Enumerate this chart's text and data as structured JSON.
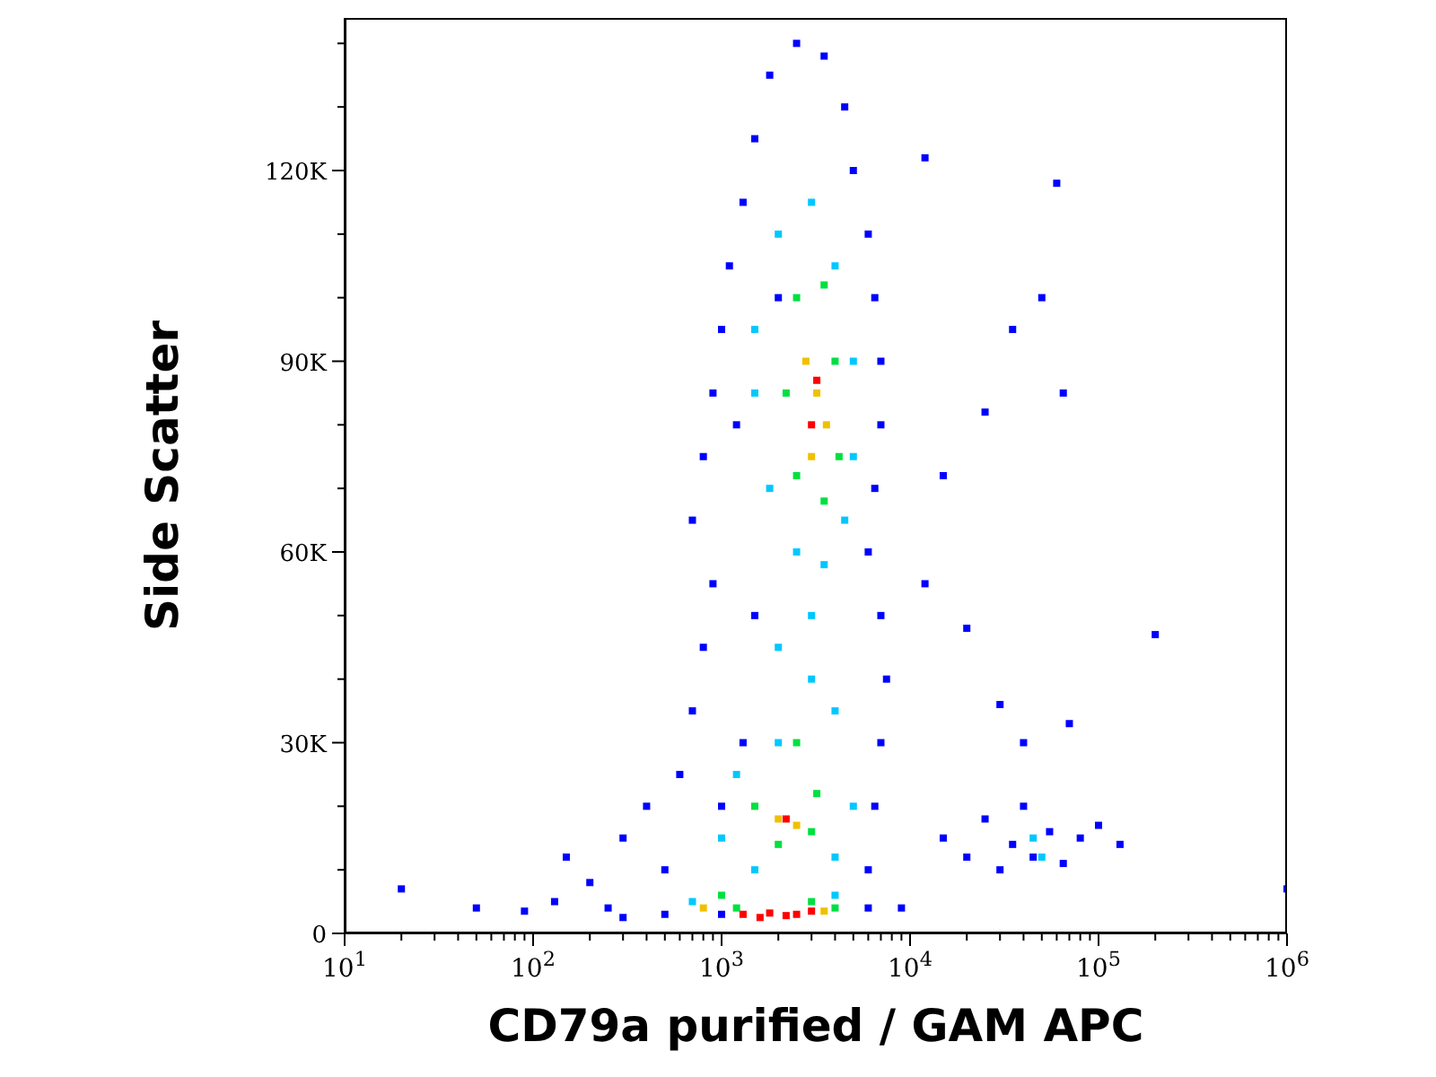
{
  "chart_data": {
    "type": "scatter",
    "xlabel": "CD79a purified / GAM APC",
    "ylabel": "Side Scatter",
    "log": "x",
    "marker": "square",
    "xlim": [
      10,
      1000000
    ],
    "ylim": [
      0,
      144000
    ],
    "xticks": [
      {
        "value": 10,
        "label": "10$^{1}$"
      },
      {
        "value": 20,
        "label": null
      },
      {
        "value": 30,
        "label": null
      },
      {
        "value": 40,
        "label": null
      },
      {
        "value": 50,
        "label": null
      },
      {
        "value": 60,
        "label": null
      },
      {
        "value": 70,
        "label": null
      },
      {
        "value": 80,
        "label": null
      },
      {
        "value": 90,
        "label": null
      },
      {
        "value": 100,
        "label": "10$^{2}$"
      },
      {
        "value": 200,
        "label": null
      },
      {
        "value": 300,
        "label": null
      },
      {
        "value": 400,
        "label": null
      },
      {
        "value": 500,
        "label": null
      },
      {
        "value": 600,
        "label": null
      },
      {
        "value": 700,
        "label": null
      },
      {
        "value": 800,
        "label": null
      },
      {
        "value": 900,
        "label": null
      },
      {
        "value": 1000,
        "label": "10$^{3}$"
      },
      {
        "value": 2000,
        "label": null
      },
      {
        "value": 3000,
        "label": null
      },
      {
        "value": 4000,
        "label": null
      },
      {
        "value": 5000,
        "label": null
      },
      {
        "value": 6000,
        "label": null
      },
      {
        "value": 7000,
        "label": null
      },
      {
        "value": 8000,
        "label": null
      },
      {
        "value": 9000,
        "label": null
      },
      {
        "value": 10000,
        "label": "10$^{4}$"
      },
      {
        "value": 20000,
        "label": null
      },
      {
        "value": 30000,
        "label": null
      },
      {
        "value": 40000,
        "label": null
      },
      {
        "value": 50000,
        "label": null
      },
      {
        "value": 60000,
        "label": null
      },
      {
        "value": 70000,
        "label": null
      },
      {
        "value": 80000,
        "label": null
      },
      {
        "value": 90000,
        "label": null
      },
      {
        "value": 100000,
        "label": "10$^{5}$"
      },
      {
        "value": 200000,
        "label": null
      },
      {
        "value": 300000,
        "label": null
      },
      {
        "value": 400000,
        "label": null
      },
      {
        "value": 500000,
        "label": null
      },
      {
        "value": 600000,
        "label": null
      },
      {
        "value": 700000,
        "label": null
      },
      {
        "value": 800000,
        "label": null
      },
      {
        "value": 900000,
        "label": null
      },
      {
        "value": 1000000,
        "label": "10$^{6}$"
      }
    ],
    "yticks": [
      0,
      {
        "value": 10000,
        "label": null
      },
      {
        "value": 20000,
        "label": null
      },
      {
        "value": 30000,
        "label": "30K"
      },
      {
        "value": 40000,
        "label": null
      },
      {
        "value": 50000,
        "label": null
      },
      {
        "value": 60000,
        "label": "60K"
      },
      {
        "value": 70000,
        "label": null
      },
      {
        "value": 80000,
        "label": null
      },
      {
        "value": 90000,
        "label": "90K"
      },
      {
        "value": 100000,
        "label": null
      },
      {
        "value": 110000,
        "label": null
      },
      {
        "value": 120000,
        "label": "120K"
      },
      {
        "value": 130000,
        "label": null
      },
      {
        "value": 140000,
        "label": null
      }
    ],
    "series": [
      {
        "color": "#0000ff",
        "x": [
          20,
          50,
          90,
          130,
          150,
          200,
          250,
          300,
          400,
          500,
          600,
          700,
          800,
          900,
          700,
          800,
          900,
          1000,
          1100,
          1300,
          1500,
          1800,
          2500,
          3500,
          4500,
          5000,
          6000,
          6500,
          7000,
          7000,
          6500,
          6000,
          7000,
          7500,
          7000,
          6500,
          6000,
          6000,
          9000,
          1000,
          500,
          15000,
          20000,
          25000,
          30000,
          35000,
          40000,
          45000,
          55000,
          65000,
          80000,
          100000,
          130000,
          40000,
          70000,
          30000,
          20000,
          12000,
          15000,
          25000,
          35000,
          50000,
          65000,
          60000,
          200000,
          1000000,
          12000,
          1500,
          1200,
          2000,
          1300,
          1000,
          300
        ],
        "values": [
          7000,
          4000,
          3500,
          5000,
          12000,
          8000,
          4000,
          15000,
          20000,
          10000,
          25000,
          35000,
          45000,
          55000,
          65000,
          75000,
          85000,
          95000,
          105000,
          115000,
          125000,
          135000,
          140000,
          138000,
          130000,
          120000,
          110000,
          100000,
          90000,
          80000,
          70000,
          60000,
          50000,
          40000,
          30000,
          20000,
          10000,
          4000,
          4000,
          3000,
          3000,
          15000,
          12000,
          18000,
          10000,
          14000,
          20000,
          12000,
          16000,
          11000,
          15000,
          17000,
          14000,
          30000,
          33000,
          36000,
          48000,
          55000,
          72000,
          82000,
          95000,
          100000,
          85000,
          118000,
          47000,
          7000,
          122000,
          50000,
          80000,
          100000,
          30000,
          20000,
          2500
        ]
      },
      {
        "color": "#00c8ff",
        "x": [
          1500,
          2000,
          3000,
          4000,
          5000,
          5000,
          4500,
          3500,
          2500,
          1800,
          1500,
          2000,
          3000,
          4000,
          2000,
          1200,
          1000,
          1500,
          4000,
          5000,
          700,
          4000,
          3000,
          45000,
          50000
        ],
        "values": [
          95000,
          110000,
          115000,
          105000,
          90000,
          75000,
          65000,
          58000,
          60000,
          70000,
          85000,
          45000,
          40000,
          35000,
          30000,
          25000,
          15000,
          10000,
          12000,
          20000,
          5000,
          6000,
          50000,
          15000,
          12000
        ]
      },
      {
        "color": "#00e040",
        "x": [
          2500,
          3500,
          4000,
          4200,
          3500,
          2500,
          2200,
          1500,
          2000,
          3000,
          3200,
          1000,
          1200,
          3000,
          4000,
          2500
        ],
        "values": [
          100000,
          102000,
          90000,
          75000,
          68000,
          72000,
          85000,
          20000,
          14000,
          16000,
          22000,
          6000,
          4000,
          5000,
          4000,
          30000
        ]
      },
      {
        "color": "#f0c000",
        "x": [
          2800,
          3200,
          3000,
          3600,
          2000,
          2500,
          800,
          3500
        ],
        "values": [
          90000,
          85000,
          75000,
          80000,
          18000,
          17000,
          4000,
          3500
        ]
      },
      {
        "color": "#ff0000",
        "x": [
          3200,
          3000,
          2200,
          1300,
          1800,
          2500,
          3000,
          1600,
          2200
        ],
        "values": [
          87000,
          80000,
          18000,
          3000,
          3200,
          3000,
          3500,
          2500,
          2800
        ]
      }
    ]
  }
}
